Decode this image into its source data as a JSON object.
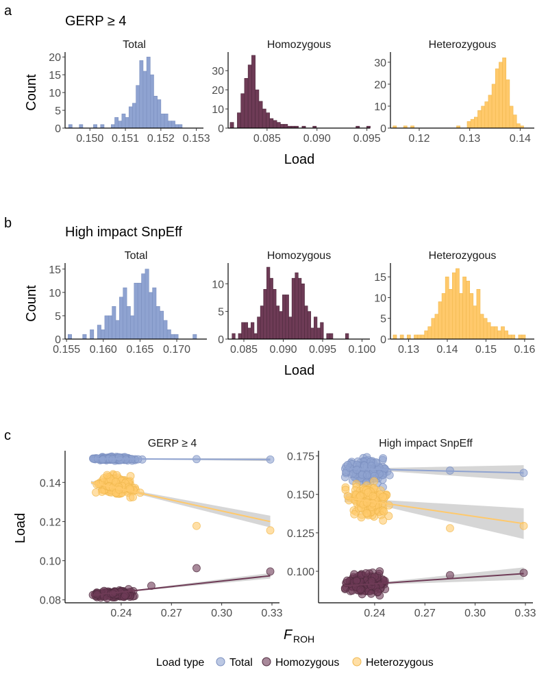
{
  "panel_letters": {
    "a": "a",
    "b": "b",
    "c": "c"
  },
  "section_titles": {
    "a": "GERP ≥ 4",
    "b": "High impact SnpEff"
  },
  "axis_titles": {
    "count": "Count",
    "load": "Load",
    "froh_main": "F",
    "froh_sub": "ROH"
  },
  "legend": {
    "title": "Load type",
    "items": [
      {
        "label": "Total",
        "color": "#8fa3d1"
      },
      {
        "label": "Homozygous",
        "color": "#6e3b56"
      },
      {
        "label": "Heterozygous",
        "color": "#ffc96b"
      }
    ]
  },
  "colors": {
    "total": "#8fa3d1",
    "total_edge": "#7a8fbf",
    "hom": "#6e3b56",
    "hom_edge": "#4e2a3d",
    "het": "#ffc96b",
    "het_edge": "#f0b84e",
    "ribbon": "#999999"
  },
  "chart_data": [
    {
      "type": "bar",
      "group": "a",
      "title": "Total",
      "color": "total",
      "xlim": [
        0.1493,
        0.1532
      ],
      "ylim": [
        0,
        21
      ],
      "xticks": [
        0.15,
        0.151,
        0.152,
        0.153
      ],
      "xtick_labels": [
        "0.150",
        "0.151",
        "0.152",
        "0.153"
      ],
      "yticks": [
        0,
        5,
        10,
        15,
        20
      ],
      "ytick_labels": [
        "0",
        "5",
        "10",
        "15",
        "20"
      ],
      "bin_start": 0.1494,
      "bin_width": 0.0001,
      "counts": [
        1,
        0,
        0,
        1,
        0,
        0,
        0,
        1,
        0,
        1,
        0,
        0,
        1,
        3,
        2,
        4,
        3,
        6,
        7,
        12,
        19,
        16,
        20,
        15,
        9,
        8,
        4,
        4,
        2,
        2,
        1,
        1,
        0
      ]
    },
    {
      "type": "bar",
      "group": "a",
      "title": "Homozygous",
      "color": "hom",
      "xlim": [
        0.0811,
        0.0953
      ],
      "ylim": [
        0,
        39
      ],
      "xticks": [
        0.085,
        0.09,
        0.095
      ],
      "xtick_labels": [
        "0.085",
        "0.090",
        "0.095"
      ],
      "yticks": [
        0,
        10,
        20,
        30
      ],
      "ytick_labels": [
        "0",
        "10",
        "20",
        "30"
      ],
      "bin_start": 0.0813,
      "bin_width": 0.00036,
      "counts": [
        3,
        0,
        8,
        18,
        26,
        33,
        38,
        20,
        14,
        10,
        8,
        5,
        4,
        3,
        2,
        2,
        1,
        1,
        1,
        0,
        1,
        0,
        0,
        1,
        0,
        0,
        0,
        0,
        0,
        0,
        0,
        0,
        0,
        0,
        0,
        1,
        0,
        0,
        1
      ]
    },
    {
      "type": "bar",
      "group": "a",
      "title": "Heterozygous",
      "color": "het",
      "xlim": [
        0.1143,
        0.1428
      ],
      "ylim": [
        0,
        34
      ],
      "xticks": [
        0.12,
        0.13,
        0.14
      ],
      "xtick_labels": [
        "0.12",
        "0.13",
        "0.14"
      ],
      "yticks": [
        0,
        10,
        20,
        30
      ],
      "ytick_labels": [
        "0",
        "10",
        "20",
        "30"
      ],
      "bin_start": 0.1148,
      "bin_width": 0.0007,
      "counts": [
        1,
        0,
        0,
        1,
        0,
        1,
        0,
        0,
        0,
        0,
        0,
        0,
        0,
        0,
        0,
        0,
        0,
        0,
        1,
        0,
        0,
        3,
        4,
        5,
        8,
        10,
        12,
        15,
        20,
        27,
        30,
        32,
        22,
        10,
        6,
        2,
        1
      ]
    },
    {
      "type": "bar",
      "group": "b",
      "title": "Total",
      "color": "total",
      "xlim": [
        0.1548,
        0.1741
      ],
      "ylim": [
        0,
        16
      ],
      "xticks": [
        0.155,
        0.16,
        0.165,
        0.17
      ],
      "xtick_labels": [
        "0.155",
        "0.160",
        "0.165",
        "0.170"
      ],
      "yticks": [
        0,
        5,
        10,
        15
      ],
      "ytick_labels": [
        "0",
        "5",
        "10",
        "15"
      ],
      "bin_start": 0.1552,
      "bin_width": 0.0005,
      "counts": [
        1,
        0,
        0,
        0,
        1,
        0,
        2,
        0,
        3,
        2,
        5,
        5,
        7,
        4,
        9,
        11,
        7,
        5,
        12,
        12,
        14,
        15,
        10,
        11,
        7,
        6,
        4,
        2,
        1,
        1,
        0,
        0,
        0,
        0,
        1
      ]
    },
    {
      "type": "bar",
      "group": "b",
      "title": "Homozygous",
      "color": "hom",
      "xlim": [
        0.083,
        0.101
      ],
      "ylim": [
        0,
        13.5
      ],
      "xticks": [
        0.085,
        0.09,
        0.095,
        0.1
      ],
      "xtick_labels": [
        "0.085",
        "0.090",
        "0.095",
        "0.100"
      ],
      "yticks": [
        0,
        5,
        10
      ],
      "ytick_labels": [
        "0",
        "5",
        "10"
      ],
      "bin_start": 0.0835,
      "bin_width": 0.0004,
      "counts": [
        1,
        0,
        1,
        3,
        3,
        2,
        3,
        1,
        4,
        6,
        9,
        13,
        11,
        9,
        6,
        5,
        8,
        8,
        4,
        11,
        12,
        11,
        10,
        6,
        5,
        2,
        4,
        2,
        3,
        0,
        1,
        1,
        0,
        0,
        0,
        0,
        1
      ]
    },
    {
      "type": "bar",
      "group": "b",
      "title": "Heterozygous",
      "color": "het",
      "xlim": [
        0.1253,
        0.1625
      ],
      "ylim": [
        0,
        18
      ],
      "xticks": [
        0.13,
        0.14,
        0.15,
        0.16
      ],
      "xtick_labels": [
        "0.13",
        "0.14",
        "0.15",
        "0.16"
      ],
      "yticks": [
        0,
        5,
        10,
        15
      ],
      "ytick_labels": [
        "0",
        "5",
        "10",
        "15"
      ],
      "bin_start": 0.126,
      "bin_width": 0.0009,
      "counts": [
        1,
        0,
        1,
        0,
        1,
        0,
        1,
        1,
        1,
        2,
        3,
        5,
        6,
        9,
        11,
        15,
        12,
        16,
        17,
        11,
        15,
        14,
        11,
        8,
        12,
        6,
        5,
        4,
        3,
        3,
        2,
        3,
        2,
        1,
        1,
        0,
        1,
        1
      ]
    },
    {
      "type": "scatter",
      "group": "c",
      "title": "GERP ≥ 4",
      "xlim": [
        0.2065,
        0.3345
      ],
      "ylim": [
        0.0785,
        0.1555
      ],
      "xticks": [
        0.24,
        0.27,
        0.3,
        0.33
      ],
      "xtick_labels": [
        "0.24",
        "0.27",
        "0.30",
        "0.33"
      ],
      "yticks": [
        0.08,
        0.1,
        0.12,
        0.14
      ],
      "ytick_labels": [
        "0.08",
        "0.10",
        "0.12",
        "0.14"
      ],
      "series": [
        {
          "name": "Total",
          "color": "total",
          "trend": [
            0.1521,
            0.1517
          ],
          "band": 0.0004,
          "y_center": 0.1521,
          "y_slope": 0,
          "y_sd": 0.0004,
          "outliers": [
            [
              0.25,
              0.1518
            ],
            [
              0.285,
              0.1519
            ],
            [
              0.329,
              0.1517
            ]
          ]
        },
        {
          "name": "Heterozygous",
          "color": "het",
          "trend": [
            0.14,
            0.12
          ],
          "band": 0.0015,
          "y_center": 0.1385,
          "y_slope": -0.06,
          "y_sd": 0.0022,
          "outliers": [
            [
              0.285,
              0.1178
            ],
            [
              0.329,
              0.1155
            ],
            [
              0.247,
              0.1325
            ]
          ]
        },
        {
          "name": "Homozygous",
          "color": "hom",
          "trend": [
            0.0823,
            0.0923
          ],
          "band": 0.0007,
          "y_center": 0.083,
          "y_slope": 0.05,
          "y_sd": 0.0008,
          "outliers": [
            [
              0.285,
              0.0962
            ],
            [
              0.329,
              0.0945
            ],
            [
              0.258,
              0.0872
            ]
          ]
        }
      ]
    },
    {
      "type": "scatter",
      "group": "c",
      "title": "High impact SnpEff",
      "xlim": [
        0.2065,
        0.3345
      ],
      "ylim": [
        0.0795,
        0.1775
      ],
      "xticks": [
        0.24,
        0.27,
        0.3,
        0.33
      ],
      "xtick_labels": [
        "0.24",
        "0.27",
        "0.30",
        "0.33"
      ],
      "yticks": [
        0.1,
        0.125,
        0.15,
        0.175
      ],
      "ytick_labels": [
        "0.100",
        "0.125",
        "0.150",
        "0.175"
      ],
      "series": [
        {
          "name": "Total",
          "color": "total",
          "trend": [
            0.1668,
            0.164
          ],
          "band": 0.0025,
          "y_center": 0.166,
          "y_slope": -0.02,
          "y_sd": 0.0035,
          "outliers": [
            [
              0.285,
              0.1655
            ],
            [
              0.329,
              0.164
            ],
            [
              0.245,
              0.1735
            ]
          ]
        },
        {
          "name": "Heterozygous",
          "color": "het",
          "trend": [
            0.148,
            0.131
          ],
          "band": 0.005,
          "y_center": 0.146,
          "y_slope": -0.05,
          "y_sd": 0.005,
          "outliers": [
            [
              0.285,
              0.128
            ],
            [
              0.329,
              0.1295
            ],
            [
              0.245,
              0.133
            ]
          ]
        },
        {
          "name": "Homozygous",
          "color": "hom",
          "trend": [
            0.0905,
            0.0985
          ],
          "band": 0.002,
          "y_center": 0.092,
          "y_slope": 0.04,
          "y_sd": 0.003,
          "outliers": [
            [
              0.285,
              0.0975
            ],
            [
              0.329,
              0.099
            ],
            [
              0.243,
              0.1
            ]
          ]
        }
      ]
    }
  ]
}
